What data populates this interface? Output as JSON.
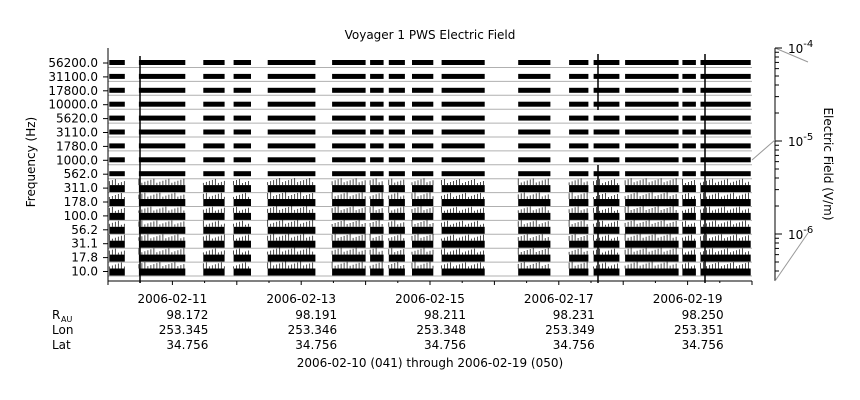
{
  "chart_data": {
    "type": "heatmap",
    "title": "Voyager 1 PWS Electric Field",
    "ylabel": "Frequency (Hz)",
    "colorbar_label": "Electric Field (V/m)",
    "colorbar_ticks": [
      {
        "base": "10",
        "exp": "-4",
        "value": 0.0001
      },
      {
        "base": "10",
        "exp": "-5",
        "value": 1e-05
      },
      {
        "base": "10",
        "exp": "-6",
        "value": 1e-06
      }
    ],
    "channels": [
      "56200.0",
      "31100.0",
      "17800.0",
      "10000.0",
      "5620.0",
      "3110.0",
      "1780.0",
      "1000.0",
      "562.0",
      "311.0",
      "178.0",
      "100.0",
      "56.2",
      "31.1",
      "17.8",
      "10.0"
    ],
    "x_start_day": 0,
    "x_end_day": 10,
    "x_ticks": [
      {
        "label": "2006-02-11",
        "day": 1
      },
      {
        "label": "2006-02-13",
        "day": 3
      },
      {
        "label": "2006-02-15",
        "day": 5
      },
      {
        "label": "2006-02-17",
        "day": 7
      },
      {
        "label": "2006-02-19",
        "day": 9
      }
    ],
    "ephemeris": [
      {
        "name": "R",
        "sub": "AU",
        "values": [
          "98.172",
          "98.191",
          "98.211",
          "98.231",
          "98.250"
        ]
      },
      {
        "name": "Lon",
        "sub": "",
        "values": [
          "253.345",
          "253.346",
          "253.348",
          "253.349",
          "253.351"
        ]
      },
      {
        "name": "Lat",
        "sub": "",
        "values": [
          "34.756",
          "34.756",
          "34.756",
          "34.756",
          "34.756"
        ]
      }
    ],
    "date_range": "2006-02-10 (041) through 2006-02-19 (050)",
    "data_segments_days": [
      [
        0.02,
        0.26
      ],
      [
        0.48,
        1.2
      ],
      [
        1.48,
        1.81
      ],
      [
        1.95,
        2.22
      ],
      [
        2.48,
        3.22
      ],
      [
        3.48,
        4.0
      ],
      [
        4.07,
        4.28
      ],
      [
        4.36,
        4.61
      ],
      [
        4.72,
        5.05
      ],
      [
        5.18,
        5.85
      ],
      [
        6.37,
        6.87
      ],
      [
        7.16,
        7.46
      ],
      [
        7.54,
        7.94
      ],
      [
        8.03,
        8.86
      ],
      [
        8.92,
        9.13
      ],
      [
        9.2,
        9.98
      ]
    ],
    "colors": {
      "data": "#000000",
      "grid": "#b0b0b0",
      "axis": "#000000",
      "colorbar_edge": "#999999"
    }
  }
}
